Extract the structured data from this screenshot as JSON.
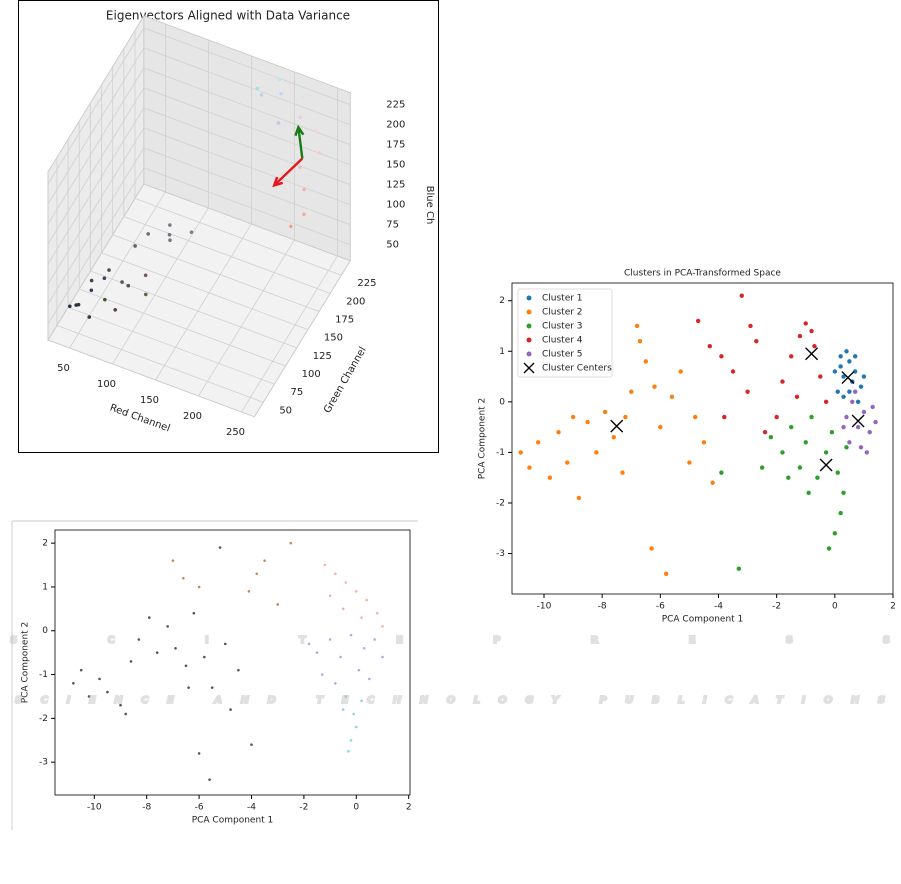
{
  "chart_data": [
    {
      "type": "scatter3d",
      "title": "Eigenvectors Aligned with Data Variance",
      "xlabel": "Red Channel",
      "ylabel": "Green Channel",
      "zlabel": "Blue Ch",
      "xlim": [
        25,
        265
      ],
      "ylim": [
        30,
        245
      ],
      "zlim": [
        30,
        240
      ],
      "xticks": [
        50,
        100,
        150,
        200,
        250
      ],
      "yticks": [
        50,
        75,
        100,
        125,
        150,
        175,
        200,
        225
      ],
      "zticks": [
        50,
        75,
        100,
        125,
        150,
        175,
        200,
        225
      ],
      "grid": true,
      "series": [
        {
          "x": [
            40,
            45,
            50,
            55,
            60,
            70,
            75,
            80,
            90,
            95,
            100,
            110,
            120,
            60,
            130,
            85,
            140,
            65,
            105,
            115,
            230,
            240,
            220,
            200,
            180,
            210,
            250,
            245,
            235,
            190,
            170,
            215,
            225,
            250,
            240
          ],
          "y": [
            50,
            60,
            45,
            70,
            55,
            80,
            60,
            90,
            100,
            75,
            110,
            85,
            120,
            90,
            100,
            65,
            130,
            50,
            95,
            130,
            200,
            215,
            225,
            215,
            210,
            190,
            205,
            180,
            190,
            230,
            220,
            235,
            210,
            170,
            160
          ],
          "z": [
            60,
            55,
            70,
            80,
            50,
            90,
            100,
            70,
            110,
            85,
            120,
            95,
            130,
            40,
            140,
            60,
            120,
            90,
            60,
            100,
            220,
            210,
            235,
            240,
            235,
            230,
            195,
            170,
            185,
            240,
            230,
            240,
            225,
            150,
            140
          ]
        }
      ],
      "vectors": [
        {
          "color": "#e8141a",
          "from": [
            230,
            205,
            180
          ],
          "to": [
            205,
            190,
            150
          ]
        },
        {
          "color": "#1a7a1a",
          "from": [
            230,
            205,
            180
          ],
          "to": [
            215,
            225,
            195
          ]
        }
      ]
    },
    {
      "type": "scatter",
      "xlabel": "PCA Component 1",
      "ylabel": "PCA Component 2",
      "xlim": [
        -11.5,
        2.05
      ],
      "ylim": [
        -3.75,
        2.3
      ],
      "xticks": [
        -10,
        -8,
        -6,
        -4,
        -2,
        0,
        2
      ],
      "yticks": [
        -3,
        -2,
        -1,
        0,
        1,
        2
      ],
      "series": [
        {
          "color": "#555555",
          "x": [
            -10.8,
            -10.5,
            -10.2,
            -9.8,
            -9.5,
            -9.0,
            -8.8,
            -8.6,
            -8.3,
            -7.9,
            -7.6,
            -7.2,
            -6.9,
            -6.5,
            -6.2,
            -5.8,
            -5.5,
            -5.0,
            -4.8,
            -4.5,
            -6.0,
            -5.6,
            -5.2,
            -4.0,
            -6.4
          ],
          "y": [
            -1.2,
            -0.9,
            -1.5,
            -1.1,
            -1.4,
            -1.7,
            -1.9,
            -0.7,
            -0.2,
            0.3,
            -0.5,
            0.1,
            -0.4,
            -0.8,
            0.4,
            -0.6,
            -1.3,
            -0.3,
            -1.8,
            -0.9,
            -2.8,
            -3.4,
            1.9,
            -2.6,
            -1.3
          ]
        },
        {
          "color": "#c8865a",
          "x": [
            -7.0,
            -6.6,
            -6.0,
            -3.8,
            -3.5,
            -4.1,
            -2.5,
            -3.0
          ],
          "y": [
            1.6,
            1.2,
            1.0,
            1.3,
            1.6,
            0.9,
            2.0,
            0.6
          ]
        },
        {
          "color": "#f0b4a8",
          "x": [
            -1.2,
            -0.8,
            -0.4,
            0.0,
            0.4,
            0.8,
            1.0,
            -0.5,
            0.2,
            -1.0
          ],
          "y": [
            1.5,
            1.3,
            1.1,
            0.9,
            0.7,
            0.4,
            0.1,
            0.5,
            0.3,
            0.8
          ]
        },
        {
          "color": "#b9a6dc",
          "x": [
            -1.5,
            -1.0,
            -0.6,
            -0.2,
            0.3,
            0.7,
            1.0,
            -1.3,
            -0.8,
            0.1,
            -1.8,
            0.5
          ],
          "y": [
            -0.5,
            -0.2,
            -0.6,
            -0.1,
            -0.4,
            -0.2,
            -0.6,
            -1.0,
            -1.2,
            -0.9,
            -0.3,
            -1.1
          ]
        },
        {
          "color": "#8fd3e8",
          "x": [
            -0.4,
            -0.1,
            0.0,
            -0.2,
            -0.3,
            0.2,
            -0.5
          ],
          "y": [
            -1.5,
            -1.9,
            -2.2,
            -2.5,
            -2.75,
            -1.6,
            -1.8
          ]
        }
      ]
    },
    {
      "type": "scatter",
      "title": "Clusters in PCA-Transformed Space",
      "xlabel": "PCA Component 1",
      "ylabel": "PCA Component 2",
      "xlim": [
        -11.1,
        2.0
      ],
      "ylim": [
        -3.8,
        2.35
      ],
      "xticks": [
        -10,
        -8,
        -6,
        -4,
        -2,
        0,
        2
      ],
      "yticks": [
        -3,
        -2,
        -1,
        0,
        1,
        2
      ],
      "legend": "upper left",
      "series": [
        {
          "name": "Cluster 1",
          "color": "#1f77b4",
          "x": [
            0.2,
            0.5,
            0.3,
            0.7,
            0.9,
            0.1,
            0.5,
            0.8,
            0.4,
            0.0,
            0.6,
            1.0,
            0.3,
            0.2,
            0.7
          ],
          "y": [
            0.9,
            0.8,
            0.5,
            0.6,
            0.3,
            0.2,
            0.2,
            0.0,
            1.0,
            0.6,
            0.4,
            0.5,
            0.1,
            0.7,
            0.9
          ]
        },
        {
          "name": "Cluster 2",
          "color": "#ff7f0e",
          "x": [
            -10.8,
            -10.5,
            -10.2,
            -9.8,
            -9.5,
            -9.2,
            -8.8,
            -8.5,
            -8.2,
            -7.9,
            -7.6,
            -7.2,
            -7.0,
            -6.8,
            -6.5,
            -6.2,
            -6.0,
            -5.6,
            -5.3,
            -5.0,
            -4.8,
            -4.5,
            -4.2,
            -6.3,
            -5.8,
            -6.7,
            -7.3,
            -9.0
          ],
          "y": [
            -1.0,
            -1.3,
            -0.8,
            -1.5,
            -0.6,
            -1.2,
            -1.9,
            -0.4,
            -1.0,
            -0.2,
            -0.7,
            -0.3,
            0.2,
            1.5,
            0.8,
            0.3,
            -0.5,
            0.1,
            0.6,
            -1.2,
            -0.3,
            -0.8,
            -1.6,
            -2.9,
            -3.4,
            1.2,
            -1.4,
            -0.3
          ]
        },
        {
          "name": "Cluster 3",
          "color": "#2ca02c",
          "x": [
            -2.2,
            -1.8,
            -1.5,
            -1.2,
            -1.0,
            -0.8,
            -0.6,
            -0.3,
            -0.1,
            0.1,
            0.3,
            0.2,
            0.0,
            -0.2,
            -1.6,
            -2.5,
            -3.9,
            -3.3,
            0.4,
            -0.9
          ],
          "y": [
            -0.7,
            -1.0,
            -0.5,
            -1.3,
            -0.8,
            -0.3,
            -1.5,
            -1.0,
            -0.6,
            -1.4,
            -1.8,
            -2.2,
            -2.6,
            -2.9,
            -1.5,
            -1.3,
            -1.4,
            -3.3,
            -0.9,
            -1.8
          ]
        },
        {
          "name": "Cluster 4",
          "color": "#d62728",
          "x": [
            -4.7,
            -4.3,
            -3.9,
            -3.5,
            -3.2,
            -3.0,
            -2.7,
            -2.4,
            -2.0,
            -1.8,
            -1.5,
            -1.2,
            -1.0,
            -0.7,
            -0.5,
            -0.3,
            -0.8,
            -1.3,
            -3.8,
            -2.9
          ],
          "y": [
            1.6,
            1.1,
            0.9,
            0.6,
            2.1,
            0.2,
            1.2,
            -0.6,
            -0.3,
            0.4,
            0.9,
            1.3,
            1.55,
            1.1,
            0.5,
            0.0,
            1.4,
            0.1,
            -0.3,
            1.5
          ]
        },
        {
          "name": "Cluster 5",
          "color": "#9467bd",
          "x": [
            0.4,
            0.6,
            0.8,
            1.0,
            1.2,
            0.5,
            0.9,
            1.3,
            0.7,
            1.1,
            0.3,
            1.4
          ],
          "y": [
            -0.3,
            0.0,
            -0.5,
            -0.2,
            -0.6,
            -0.8,
            -0.9,
            -0.1,
            0.2,
            -1.0,
            -0.5,
            -0.4
          ]
        },
        {
          "name": "Cluster Centers",
          "color": "#000000",
          "marker": "x",
          "x": [
            -0.8,
            0.45,
            0.8,
            -7.5,
            -0.3
          ],
          "y": [
            0.95,
            0.48,
            -0.38,
            -0.48,
            -1.25
          ]
        }
      ]
    }
  ],
  "watermark": {
    "brand": "SCITEPRESS",
    "tagline": "SCIENCE AND TECHNOLOGY PUBLICATIONS"
  }
}
